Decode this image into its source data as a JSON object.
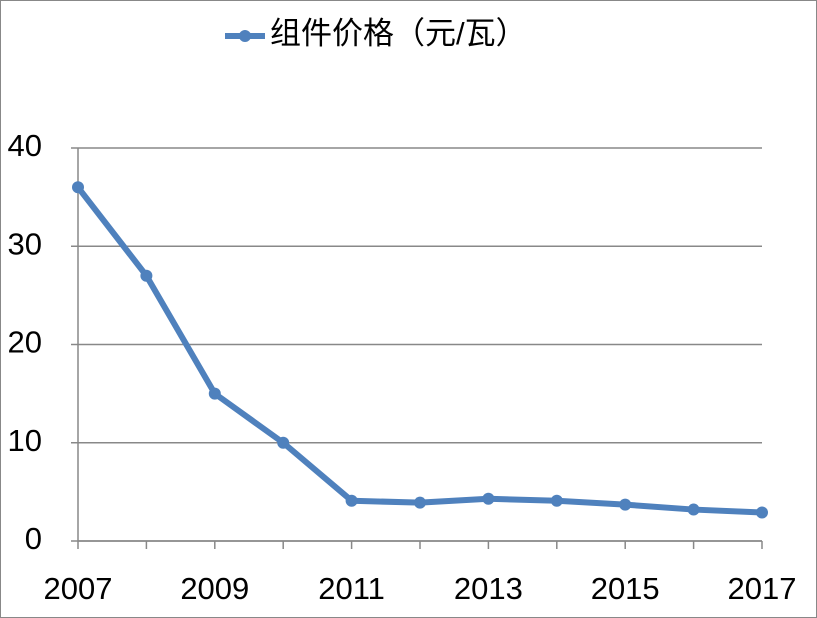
{
  "chart_data": {
    "type": "line",
    "x": [
      2007,
      2008,
      2009,
      2010,
      2011,
      2012,
      2013,
      2014,
      2015,
      2016,
      2017
    ],
    "series": [
      {
        "name": "组件价格（元/瓦）",
        "color": "#4f81bd",
        "values": [
          36,
          27,
          15,
          10,
          4.1,
          3.9,
          4.3,
          4.1,
          3.7,
          3.2,
          2.9
        ]
      }
    ],
    "xlim": [
      2007,
      2017
    ],
    "xticks": [
      2007,
      2009,
      2011,
      2013,
      2015,
      2017
    ],
    "ylim": [
      0,
      40
    ],
    "yticks": [
      0,
      10,
      20,
      30,
      40
    ],
    "grid": true,
    "legend": "top"
  }
}
